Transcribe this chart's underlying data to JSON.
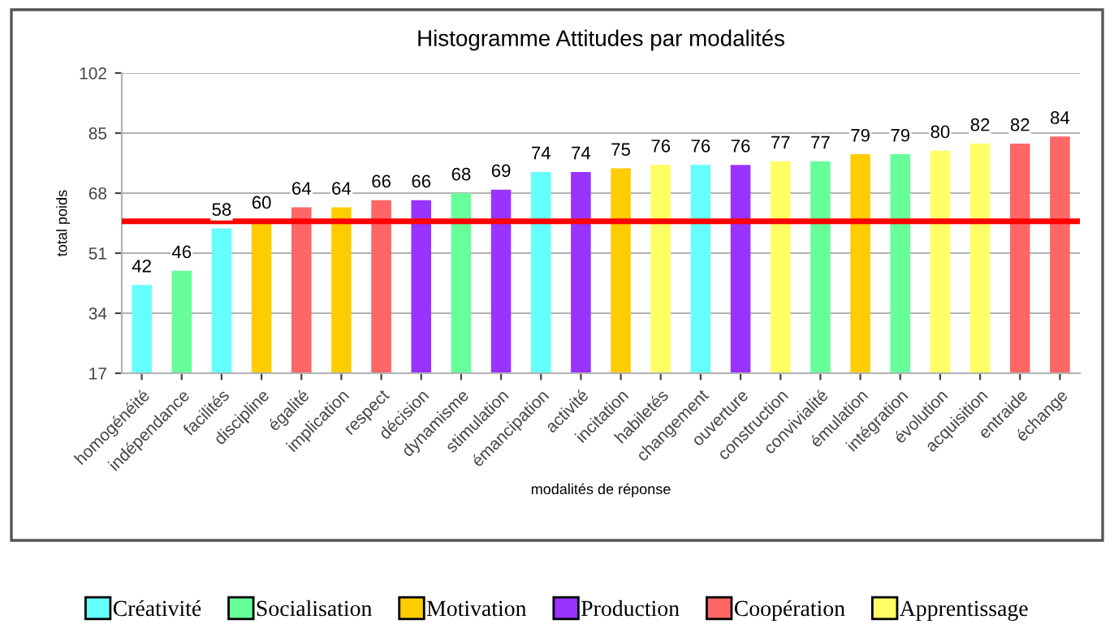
{
  "chart_data": {
    "type": "bar",
    "title": "Histogramme Attitudes par modalités",
    "xlabel": "modalités de réponse",
    "ylabel": "total poids",
    "categories": [
      "homogénéité",
      "indépendance",
      "facilités",
      "discipline",
      "égalité",
      "implication",
      "respect",
      "décision",
      "dynamisme",
      "stimulation",
      "émancipation",
      "activité",
      "incitation",
      "habiletés",
      "changement",
      "ouverture",
      "construction",
      "convivialité",
      "émulation",
      "intégration",
      "évolution",
      "acquisition",
      "entraide",
      "échange"
    ],
    "series": [
      {
        "name": "Créativité",
        "color": "#66ffff",
        "values": [
          42,
          null,
          58,
          null,
          null,
          null,
          null,
          null,
          null,
          null,
          74,
          null,
          null,
          null,
          76,
          null,
          null,
          null,
          null,
          null,
          null,
          null,
          null,
          null
        ]
      },
      {
        "name": "Socialisation",
        "color": "#66ff99",
        "values": [
          null,
          46,
          null,
          null,
          null,
          null,
          null,
          null,
          68,
          null,
          null,
          null,
          null,
          null,
          null,
          null,
          null,
          77,
          null,
          79,
          null,
          null,
          null,
          null
        ]
      },
      {
        "name": "Motivation",
        "color": "#ffcc00",
        "values": [
          null,
          null,
          null,
          60,
          null,
          64,
          null,
          null,
          null,
          null,
          null,
          null,
          75,
          null,
          null,
          null,
          null,
          null,
          79,
          null,
          null,
          null,
          null,
          null
        ]
      },
      {
        "name": "Production",
        "color": "#9933ff",
        "values": [
          null,
          null,
          null,
          null,
          null,
          null,
          null,
          66,
          null,
          69,
          null,
          74,
          null,
          null,
          null,
          76,
          null,
          null,
          null,
          null,
          null,
          null,
          null,
          null
        ]
      },
      {
        "name": "Coopération",
        "color": "#ff6666",
        "values": [
          null,
          null,
          null,
          null,
          64,
          null,
          66,
          null,
          null,
          null,
          null,
          null,
          null,
          null,
          null,
          null,
          null,
          null,
          null,
          null,
          null,
          null,
          82,
          84
        ]
      },
      {
        "name": "Apprentissage",
        "color": "#ffff66",
        "values": [
          null,
          null,
          null,
          null,
          null,
          null,
          null,
          null,
          null,
          null,
          null,
          null,
          null,
          76,
          null,
          null,
          77,
          null,
          null,
          null,
          80,
          82,
          null,
          null
        ]
      }
    ],
    "ylim": [
      17,
      102
    ],
    "yticks": [
      17,
      34,
      51,
      68,
      85,
      102
    ],
    "grid": "y",
    "data_labels": true,
    "legend": "bottom",
    "ref_lines": [
      {
        "axis": "y",
        "value": 60,
        "color": "#ff0000"
      }
    ]
  }
}
